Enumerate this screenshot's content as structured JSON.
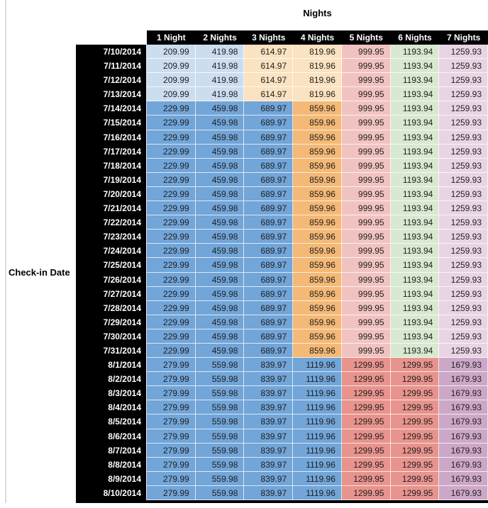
{
  "colors": {
    "header_bg": "#000000",
    "header_text": "#ffffff",
    "light_blue": "#cdddf0",
    "light_orange": "#fbe2c0",
    "medium_blue": "#72a5d8",
    "medium_orange": "#f4b976",
    "light_red": "#f1c3c0",
    "light_green": "#d7e9d0",
    "light_pink": "#e9d4e4",
    "medium_red": "#e8938d",
    "medium_mauve": "#cda7c8"
  },
  "groups": {
    "A": [
      "light_blue",
      "light_blue",
      "light_orange",
      "light_orange",
      "light_red",
      "light_green",
      "light_pink"
    ],
    "B": [
      "medium_blue",
      "medium_blue",
      "medium_blue",
      "medium_orange",
      "light_red",
      "light_green",
      "light_pink"
    ],
    "C": [
      "medium_blue",
      "medium_blue",
      "medium_blue",
      "medium_blue",
      "medium_red",
      "medium_red",
      "medium_mauve"
    ]
  },
  "chart_data": {
    "type": "table",
    "title": "Nights",
    "row_axis_label": "Check-in Date",
    "columns": [
      "1 Night",
      "2 Nights",
      "3 Nights",
      "4 Nights",
      "5 Nights",
      "6 Nights",
      "7 Nights"
    ],
    "rows": [
      {
        "date": "7/10/2014",
        "group": "A",
        "values": [
          "209.99",
          "419.98",
          "614.97",
          "819.96",
          "999.95",
          "1193.94",
          "1259.93"
        ]
      },
      {
        "date": "7/11/2014",
        "group": "A",
        "values": [
          "209.99",
          "419.98",
          "614.97",
          "819.96",
          "999.95",
          "1193.94",
          "1259.93"
        ]
      },
      {
        "date": "7/12/2014",
        "group": "A",
        "values": [
          "209.99",
          "419.98",
          "614.97",
          "819.96",
          "999.95",
          "1193.94",
          "1259.93"
        ]
      },
      {
        "date": "7/13/2014",
        "group": "A",
        "values": [
          "209.99",
          "419.98",
          "614.97",
          "819.96",
          "999.95",
          "1193.94",
          "1259.93"
        ]
      },
      {
        "date": "7/14/2014",
        "group": "B",
        "values": [
          "229.99",
          "459.98",
          "689.97",
          "859.96",
          "999.95",
          "1193.94",
          "1259.93"
        ]
      },
      {
        "date": "7/15/2014",
        "group": "B",
        "values": [
          "229.99",
          "459.98",
          "689.97",
          "859.96",
          "999.95",
          "1193.94",
          "1259.93"
        ]
      },
      {
        "date": "7/16/2014",
        "group": "B",
        "values": [
          "229.99",
          "459.98",
          "689.97",
          "859.96",
          "999.95",
          "1193.94",
          "1259.93"
        ]
      },
      {
        "date": "7/17/2014",
        "group": "B",
        "values": [
          "229.99",
          "459.98",
          "689.97",
          "859.96",
          "999.95",
          "1193.94",
          "1259.93"
        ]
      },
      {
        "date": "7/18/2014",
        "group": "B",
        "values": [
          "229.99",
          "459.98",
          "689.97",
          "859.96",
          "999.95",
          "1193.94",
          "1259.93"
        ]
      },
      {
        "date": "7/19/2014",
        "group": "B",
        "values": [
          "229.99",
          "459.98",
          "689.97",
          "859.96",
          "999.95",
          "1193.94",
          "1259.93"
        ]
      },
      {
        "date": "7/20/2014",
        "group": "B",
        "values": [
          "229.99",
          "459.98",
          "689.97",
          "859.96",
          "999.95",
          "1193.94",
          "1259.93"
        ]
      },
      {
        "date": "7/21/2014",
        "group": "B",
        "values": [
          "229.99",
          "459.98",
          "689.97",
          "859.96",
          "999.95",
          "1193.94",
          "1259.93"
        ]
      },
      {
        "date": "7/22/2014",
        "group": "B",
        "values": [
          "229.99",
          "459.98",
          "689.97",
          "859.96",
          "999.95",
          "1193.94",
          "1259.93"
        ]
      },
      {
        "date": "7/23/2014",
        "group": "B",
        "values": [
          "229.99",
          "459.98",
          "689.97",
          "859.96",
          "999.95",
          "1193.94",
          "1259.93"
        ]
      },
      {
        "date": "7/24/2014",
        "group": "B",
        "values": [
          "229.99",
          "459.98",
          "689.97",
          "859.96",
          "999.95",
          "1193.94",
          "1259.93"
        ]
      },
      {
        "date": "7/25/2014",
        "group": "B",
        "values": [
          "229.99",
          "459.98",
          "689.97",
          "859.96",
          "999.95",
          "1193.94",
          "1259.93"
        ]
      },
      {
        "date": "7/26/2014",
        "group": "B",
        "values": [
          "229.99",
          "459.98",
          "689.97",
          "859.96",
          "999.95",
          "1193.94",
          "1259.93"
        ]
      },
      {
        "date": "7/27/2014",
        "group": "B",
        "values": [
          "229.99",
          "459.98",
          "689.97",
          "859.96",
          "999.95",
          "1193.94",
          "1259.93"
        ]
      },
      {
        "date": "7/28/2014",
        "group": "B",
        "values": [
          "229.99",
          "459.98",
          "689.97",
          "859.96",
          "999.95",
          "1193.94",
          "1259.93"
        ]
      },
      {
        "date": "7/29/2014",
        "group": "B",
        "values": [
          "229.99",
          "459.98",
          "689.97",
          "859.96",
          "999.95",
          "1193.94",
          "1259.93"
        ]
      },
      {
        "date": "7/30/2014",
        "group": "B",
        "values": [
          "229.99",
          "459.98",
          "689.97",
          "859.96",
          "999.95",
          "1193.94",
          "1259.93"
        ]
      },
      {
        "date": "7/31/2014",
        "group": "B",
        "values": [
          "229.99",
          "459.98",
          "689.97",
          "859.96",
          "999.95",
          "1193.94",
          "1259.93"
        ]
      },
      {
        "date": "8/1/2014",
        "group": "C",
        "values": [
          "279.99",
          "559.98",
          "839.97",
          "1119.96",
          "1299.95",
          "1299.95",
          "1679.93"
        ]
      },
      {
        "date": "8/2/2014",
        "group": "C",
        "values": [
          "279.99",
          "559.98",
          "839.97",
          "1119.96",
          "1299.95",
          "1299.95",
          "1679.93"
        ]
      },
      {
        "date": "8/3/2014",
        "group": "C",
        "values": [
          "279.99",
          "559.98",
          "839.97",
          "1119.96",
          "1299.95",
          "1299.95",
          "1679.93"
        ]
      },
      {
        "date": "8/4/2014",
        "group": "C",
        "values": [
          "279.99",
          "559.98",
          "839.97",
          "1119.96",
          "1299.95",
          "1299.95",
          "1679.93"
        ]
      },
      {
        "date": "8/5/2014",
        "group": "C",
        "values": [
          "279.99",
          "559.98",
          "839.97",
          "1119.96",
          "1299.95",
          "1299.95",
          "1679.93"
        ]
      },
      {
        "date": "8/6/2014",
        "group": "C",
        "values": [
          "279.99",
          "559.98",
          "839.97",
          "1119.96",
          "1299.95",
          "1299.95",
          "1679.93"
        ]
      },
      {
        "date": "8/7/2014",
        "group": "C",
        "values": [
          "279.99",
          "559.98",
          "839.97",
          "1119.96",
          "1299.95",
          "1299.95",
          "1679.93"
        ]
      },
      {
        "date": "8/8/2014",
        "group": "C",
        "values": [
          "279.99",
          "559.98",
          "839.97",
          "1119.96",
          "1299.95",
          "1299.95",
          "1679.93"
        ]
      },
      {
        "date": "8/9/2014",
        "group": "C",
        "values": [
          "279.99",
          "559.98",
          "839.97",
          "1119.96",
          "1299.95",
          "1299.95",
          "1679.93"
        ]
      },
      {
        "date": "8/10/2014",
        "group": "C",
        "values": [
          "279.99",
          "559.98",
          "839.97",
          "1119.96",
          "1299.95",
          "1299.95",
          "1679.93"
        ]
      }
    ]
  }
}
